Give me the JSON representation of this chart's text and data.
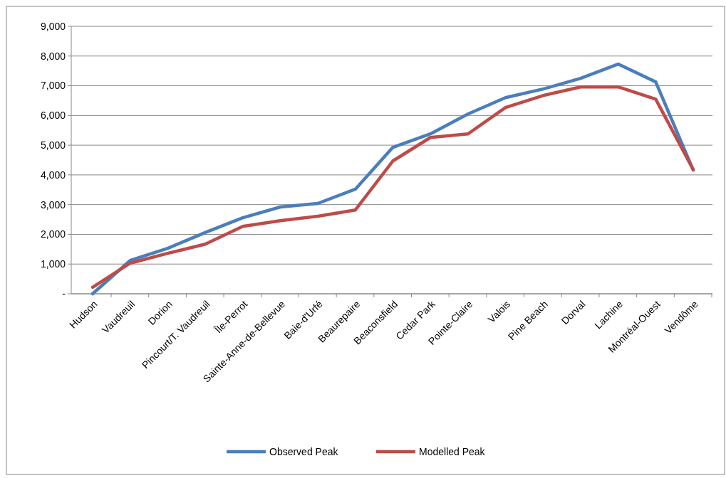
{
  "chart_data": {
    "type": "line",
    "categories": [
      "Hudson",
      "Vaudreuil",
      "Dorion",
      "Pincourt/T. Vaudreuil",
      "Île-Perrot",
      "Sainte-Anne-de-Bellevue",
      "Baie-d'Urfé",
      "Beaurepaire",
      "Beaconsfield",
      "Cedar Park",
      "Pointe-Claire",
      "Valois",
      "Pine Beach",
      "Dorval",
      "Lachine",
      "Montréal-Ouest",
      "Vendôme"
    ],
    "series": [
      {
        "name": "Observed Peak",
        "color": "#4a7ebb",
        "values": [
          0,
          1120,
          1530,
          2060,
          2560,
          2920,
          3040,
          3520,
          4930,
          5380,
          6050,
          6600,
          6890,
          7250,
          7730,
          7130,
          4160
        ]
      },
      {
        "name": "Modelled Peak",
        "color": "#be4b48",
        "values": [
          220,
          1030,
          1360,
          1670,
          2270,
          2460,
          2610,
          2820,
          4470,
          5260,
          5380,
          6270,
          6670,
          6960,
          6960,
          6550,
          4180
        ]
      }
    ],
    "ylim": [
      0,
      9000
    ],
    "yticks": [
      {
        "value": 0,
        "label": "-"
      },
      {
        "value": 1000,
        "label": "1,000"
      },
      {
        "value": 2000,
        "label": "2,000"
      },
      {
        "value": 3000,
        "label": "3,000"
      },
      {
        "value": 4000,
        "label": "4,000"
      },
      {
        "value": 5000,
        "label": "5,000"
      },
      {
        "value": 6000,
        "label": "6,000"
      },
      {
        "value": 7000,
        "label": "7,000"
      },
      {
        "value": 8000,
        "label": "8,000"
      },
      {
        "value": 9000,
        "label": "9,000"
      }
    ],
    "grid": "y",
    "legend": "bottom",
    "marker": "none",
    "line_style": "solid"
  }
}
